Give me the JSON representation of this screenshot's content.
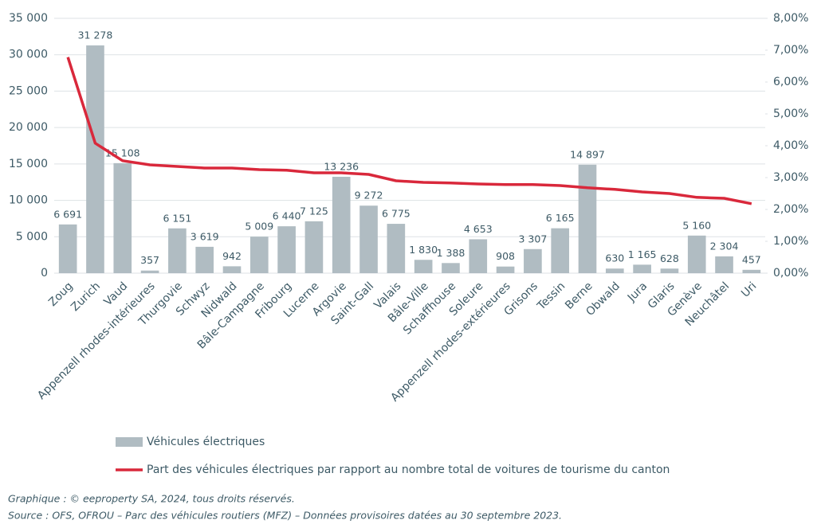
{
  "chart_data": {
    "type": "bar",
    "categories": [
      "Zoug",
      "Zurich",
      "Vaud",
      "Appenzell rhodes-intérieures",
      "Thurgovie",
      "Schwyz",
      "Nidwald",
      "Bâle-Campagne",
      "Fribourg",
      "Lucerne",
      "Argovie",
      "Saint-Gall",
      "Valais",
      "Bâle-Ville",
      "Schaffhouse",
      "Soleure",
      "Appenzell rhodes-extérieures",
      "Grisons",
      "Tessin",
      "Berne",
      "Obwald",
      "Jura",
      "Glaris",
      "Genève",
      "Neuchâtel",
      "Uri"
    ],
    "series": [
      {
        "name": "Véhicules électriques",
        "type": "bar",
        "color": "#b0bcc2",
        "values": [
          6691,
          31278,
          15108,
          357,
          6151,
          3619,
          942,
          5009,
          6440,
          7125,
          13236,
          9272,
          6775,
          1830,
          1388,
          4653,
          908,
          3307,
          6165,
          14897,
          630,
          1165,
          628,
          5160,
          2304,
          457
        ],
        "value_labels": [
          "6 691",
          "31 278",
          "15 108",
          "357",
          "6 151",
          "3 619",
          "942",
          "5 009",
          "6 440",
          "7 125",
          "13 236",
          "9 272",
          "6 775",
          "1 830",
          "1 388",
          "4 653",
          "908",
          "3 307",
          "6 165",
          "14 897",
          "630",
          "1 165",
          "628",
          "5 160",
          "2 304",
          "457"
        ]
      },
      {
        "name": "Part des véhicules électriques par rapport au nombre total de voitures de tourisme du canton",
        "type": "line",
        "color": "#d9283b",
        "axis": "y2",
        "values": [
          6.78,
          4.08,
          3.53,
          3.4,
          3.35,
          3.3,
          3.3,
          3.25,
          3.23,
          3.15,
          3.15,
          3.1,
          2.9,
          2.85,
          2.83,
          2.8,
          2.78,
          2.78,
          2.75,
          2.68,
          2.63,
          2.55,
          2.5,
          2.38,
          2.35,
          2.18
        ]
      }
    ],
    "ylim": [
      0,
      35000
    ],
    "yticks": [
      0,
      {
        "value": 5000,
        "label": "5 000"
      },
      {
        "value": 10000,
        "label": "10 000"
      },
      {
        "value": 15000,
        "label": "15 000"
      },
      {
        "value": 20000,
        "label": "20 000"
      },
      {
        "value": 25000,
        "label": "25 000"
      },
      {
        "value": 30000,
        "label": "30 000"
      },
      {
        "value": 35000,
        "label": "35 000"
      }
    ],
    "y2lim": [
      0,
      8
    ],
    "y2ticks": [
      {
        "value": 0,
        "label": "0,00%"
      },
      {
        "value": 1,
        "label": "1,00%"
      },
      {
        "value": 2,
        "label": "2,00%"
      },
      {
        "value": 3,
        "label": "3,00%"
      },
      {
        "value": 4,
        "label": "4,00%"
      },
      {
        "value": 5,
        "label": "5,00%"
      },
      {
        "value": 6,
        "label": "6,00%"
      },
      {
        "value": 7,
        "label": "7,00%"
      },
      {
        "value": 8,
        "label": "8,00%"
      }
    ],
    "grid": true,
    "legend": "bottom"
  },
  "notes": [
    "Graphique : © eeproperty SA, 2024, tous droits réservés.",
    "Source : OFS, OFROU – Parc des véhicules routiers (MFZ) – Données provisoires datées au 30 septembre 2023."
  ]
}
